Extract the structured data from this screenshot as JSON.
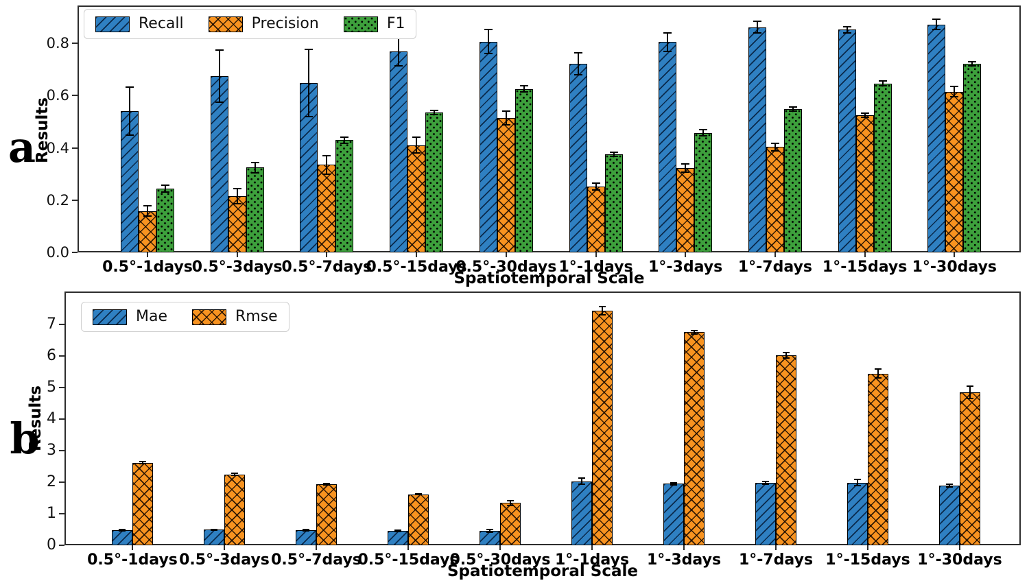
{
  "figure": {
    "panel_a_letter": "a",
    "panel_b_letter": "b"
  },
  "colors": {
    "recall_blue": "#2f80c2",
    "precision_orange": "#f89320",
    "f1_green": "#3da03c",
    "axis": "#2d2d2d",
    "error_bar": "#000000"
  },
  "chart_data": [
    {
      "id": "a",
      "type": "bar",
      "title": "",
      "xlabel": "Spatiotemporal Scale",
      "ylabel": "Results",
      "ylim": [
        0,
        0.945
      ],
      "grid": false,
      "legend_position": "upper-left",
      "ytick_labels": [
        "0.0",
        "0.2",
        "0.4",
        "0.6",
        "0.8"
      ],
      "yticks": [
        0.0,
        0.2,
        0.4,
        0.6,
        0.8
      ],
      "categories": [
        "0.5°-1days",
        "0.5°-3days",
        "0.5°-7days",
        "0.5°-15days",
        "0.5°-30days",
        "1°-1days",
        "1°-3days",
        "1°-7days",
        "1°-15days",
        "1°-30days"
      ],
      "series": [
        {
          "name": "Recall",
          "color_key": "recall_blue",
          "hatch": "/",
          "values": [
            0.54,
            0.675,
            0.648,
            0.77,
            0.807,
            0.723,
            0.805,
            0.862,
            0.852,
            0.872
          ],
          "errors": [
            0.092,
            0.1,
            0.128,
            0.055,
            0.046,
            0.042,
            0.035,
            0.022,
            0.012,
            0.02
          ]
        },
        {
          "name": "Precision",
          "color_key": "precision_orange",
          "hatch": "x",
          "values": [
            0.158,
            0.215,
            0.335,
            0.41,
            0.515,
            0.252,
            0.322,
            0.403,
            0.525,
            0.615
          ],
          "errors": [
            0.02,
            0.028,
            0.035,
            0.03,
            0.027,
            0.012,
            0.016,
            0.015,
            0.008,
            0.02
          ]
        },
        {
          "name": "F1",
          "color_key": "f1_green",
          "hatch": ".",
          "values": [
            0.243,
            0.325,
            0.43,
            0.535,
            0.625,
            0.375,
            0.458,
            0.548,
            0.647,
            0.722
          ],
          "errors": [
            0.013,
            0.02,
            0.012,
            0.008,
            0.012,
            0.008,
            0.012,
            0.008,
            0.01,
            0.007
          ]
        }
      ]
    },
    {
      "id": "b",
      "type": "bar",
      "title": "",
      "xlabel": "Spatiotemporal Scale",
      "ylabel": "Results",
      "ylim": [
        0,
        8.05
      ],
      "grid": false,
      "legend_position": "upper-left",
      "ytick_labels": [
        "0",
        "1",
        "2",
        "3",
        "4",
        "5",
        "6",
        "7"
      ],
      "yticks": [
        0,
        1,
        2,
        3,
        4,
        5,
        6,
        7
      ],
      "categories": [
        "0.5°-1days",
        "0.5°-3days",
        "0.5°-7days",
        "0.5°-15days",
        "0.5°-30days",
        "1°-1days",
        "1°-3days",
        "1°-7days",
        "1°-15days",
        "1°-30days"
      ],
      "series": [
        {
          "name": "Mae",
          "color_key": "recall_blue",
          "hatch": "/",
          "values": [
            0.47,
            0.49,
            0.47,
            0.46,
            0.45,
            2.03,
            1.95,
            1.98,
            1.99,
            1.89
          ],
          "errors": [
            0.02,
            0.02,
            0.02,
            0.02,
            0.04,
            0.1,
            0.03,
            0.04,
            0.09,
            0.05
          ]
        },
        {
          "name": "Rmse",
          "color_key": "precision_orange",
          "hatch": "x",
          "values": [
            2.62,
            2.25,
            1.93,
            1.62,
            1.34,
            7.45,
            6.76,
            6.03,
            5.45,
            4.85
          ],
          "errors": [
            0.03,
            0.03,
            0.02,
            0.02,
            0.08,
            0.13,
            0.06,
            0.09,
            0.14,
            0.2
          ]
        }
      ]
    }
  ]
}
